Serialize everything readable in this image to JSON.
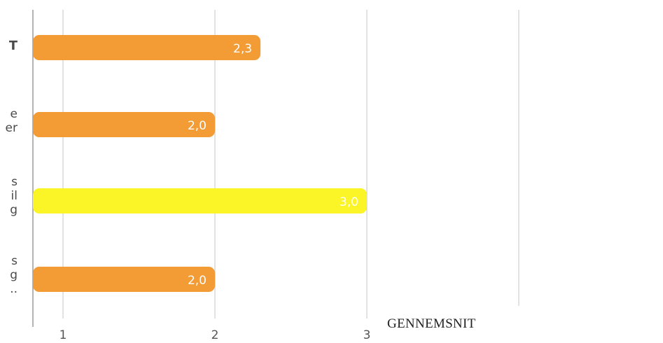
{
  "chart_data": {
    "type": "bar",
    "orientation": "horizontal",
    "categories": [
      "T",
      "e\ner",
      "s\nil\ng",
      "s\ng\n.."
    ],
    "values": [
      2.3,
      2.0,
      3.0,
      2.0
    ],
    "value_labels": [
      "2,3",
      "2,0",
      "3,0",
      "2,0"
    ],
    "bar_colors": [
      "#f39b35",
      "#f39b35",
      "#fbf426",
      "#f39b35"
    ],
    "x_ticks": [
      "1",
      "2",
      "3"
    ],
    "xlim": [
      0.8,
      4.0
    ],
    "grid": true,
    "legend": "GENNEMSNIT"
  }
}
